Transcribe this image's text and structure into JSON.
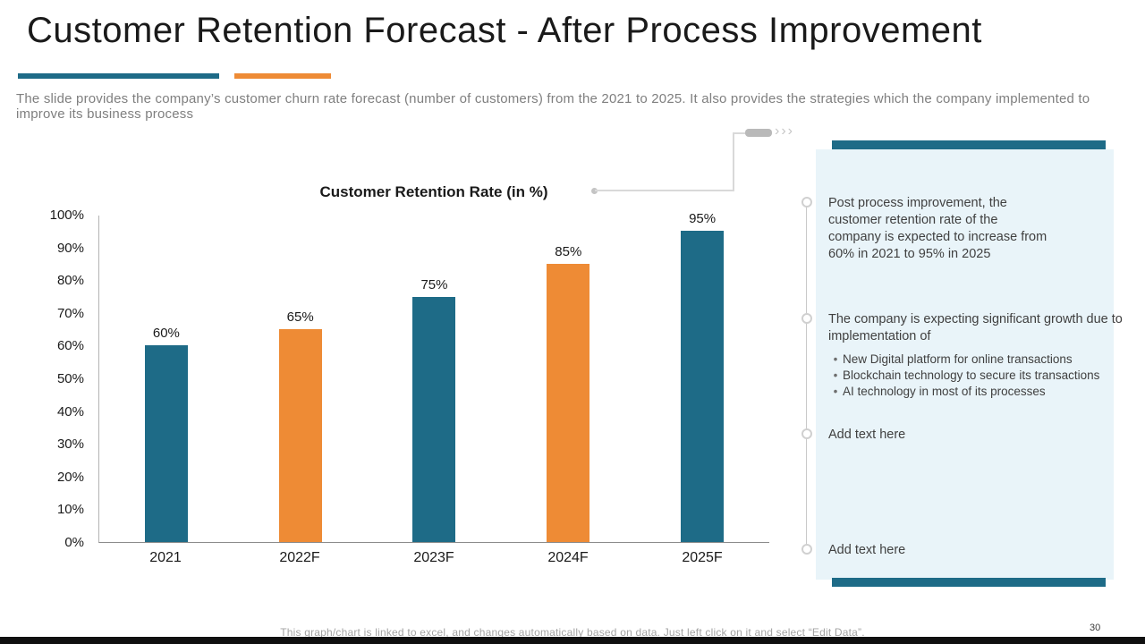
{
  "slide": {
    "title": "Customer Retention Forecast - After Process Improvement",
    "description": "The slide provides the company’s customer churn rate forecast (number of customers) from the 2021 to 2025. It also provides the strategies which the company implemented to improve its business process",
    "page_number": "30",
    "footer_note": "This graph/chart is linked to excel, and changes automatically based on data. Just left click on it and select “Edit Data”."
  },
  "colors": {
    "teal": "#1e6b87",
    "orange": "#ee8b35",
    "panel_bg": "#e9f4f9",
    "gray_text": "#7f7f7f"
  },
  "chart_data": {
    "type": "bar",
    "title": "Customer Retention Rate (in %)",
    "categories": [
      "2021",
      "2022F",
      "2023F",
      "2024F",
      "2025F"
    ],
    "values": [
      60,
      65,
      75,
      85,
      95
    ],
    "value_labels": [
      "60%",
      "65%",
      "75%",
      "85%",
      "95%"
    ],
    "bar_colors": [
      "#1e6b87",
      "#ee8b35",
      "#1e6b87",
      "#ee8b35",
      "#1e6b87"
    ],
    "ylim": [
      0,
      100
    ],
    "ytick_labels": [
      "0%",
      "10%",
      "20%",
      "30%",
      "40%",
      "50%",
      "60%",
      "70%",
      "80%",
      "90%",
      "100%"
    ],
    "xlabel": "",
    "ylabel": "",
    "grid": false,
    "legend": false
  },
  "panel": {
    "items": [
      {
        "text": "Post process improvement, the customer retention rate of the company is expected to increase from 60% in 2021 to 95% in 2025",
        "bullets": [],
        "placeholder": false
      },
      {
        "text": "The company is expecting significant growth due to implementation of",
        "bullets": [
          "New Digital platform for online transactions",
          "Blockchain technology to secure its transactions",
          "AI technology in most of its processes"
        ],
        "placeholder": false
      },
      {
        "text": "Add text here",
        "bullets": [],
        "placeholder": true
      },
      {
        "text": "Add text here",
        "bullets": [],
        "placeholder": true
      }
    ]
  }
}
